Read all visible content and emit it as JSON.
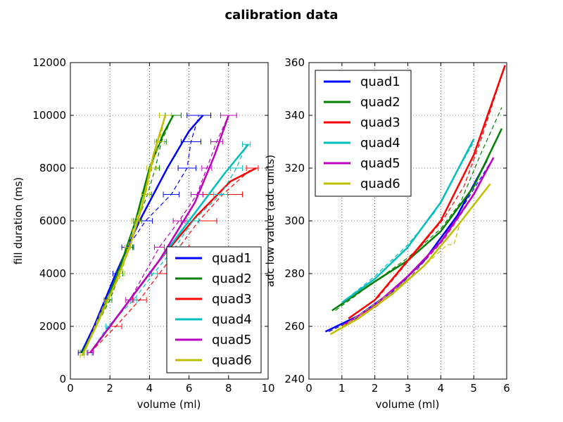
{
  "figure": {
    "title": "calibration data"
  },
  "colors": {
    "quad1": "#0000ff",
    "quad2": "#008000",
    "quad3": "#ff0000",
    "quad4": "#00bfbf",
    "quad5": "#bf00bf",
    "quad6": "#bfbf00"
  },
  "chart_data": [
    {
      "type": "line",
      "xlabel": "volume (ml)",
      "ylabel": "fill duration (ms)",
      "xlim": [
        0,
        10
      ],
      "ylim": [
        0,
        12000
      ],
      "xticks": [
        "0",
        "2",
        "4",
        "6",
        "8",
        "10"
      ],
      "yticks": [
        "0",
        "2000",
        "4000",
        "6000",
        "8000",
        "10000",
        "12000"
      ],
      "grid": true,
      "legend": {
        "position": "lower-right",
        "entries": [
          "quad1",
          "quad2",
          "quad3",
          "quad4",
          "quad5",
          "quad6"
        ]
      },
      "series": [
        {
          "name": "quad1",
          "color": "#0000ff",
          "fit": [
            [
              0.55,
              1000
            ],
            [
              1.2,
              2000
            ],
            [
              2.3,
              4000
            ],
            [
              3.5,
              6000
            ],
            [
              4.9,
              8000
            ],
            [
              6.0,
              9400
            ],
            [
              6.7,
              10000
            ]
          ],
          "measured": [
            [
              0.55,
              1000
            ],
            [
              1.9,
              3000
            ],
            [
              2.4,
              4000
            ],
            [
              2.9,
              5000
            ],
            [
              3.8,
              6000
            ],
            [
              5.1,
              7000
            ],
            [
              5.9,
              8000
            ],
            [
              6.1,
              9000
            ],
            [
              6.5,
              10000
            ]
          ],
          "xerr": [
            0.15,
            0.2,
            0.25,
            0.3,
            0.35,
            0.4,
            0.45,
            0.5,
            0.6
          ]
        },
        {
          "name": "quad2",
          "color": "#008000",
          "fit": [
            [
              0.6,
              1000
            ],
            [
              1.3,
              2000
            ],
            [
              2.4,
              4000
            ],
            [
              3.3,
              6000
            ],
            [
              4.0,
              8000
            ],
            [
              4.7,
              9300
            ],
            [
              5.2,
              10000
            ]
          ],
          "measured": [
            [
              0.6,
              1000
            ],
            [
              2.0,
              3000
            ],
            [
              2.5,
              4000
            ],
            [
              3.0,
              5000
            ],
            [
              3.4,
              6000
            ],
            [
              3.9,
              7000
            ],
            [
              4.3,
              8000
            ],
            [
              4.6,
              9000
            ],
            [
              5.2,
              10000
            ]
          ],
          "xerr": [
            0.1,
            0.1,
            0.15,
            0.15,
            0.2,
            0.2,
            0.2,
            0.25,
            0.4
          ]
        },
        {
          "name": "quad3",
          "color": "#ff0000",
          "fit": [
            [
              1.0,
              1000
            ],
            [
              2.5,
              2500
            ],
            [
              4.5,
              4500
            ],
            [
              6.4,
              6200
            ],
            [
              8.1,
              7500
            ],
            [
              9.4,
              8000
            ]
          ],
          "measured": [
            [
              1.0,
              1000
            ],
            [
              2.3,
              2000
            ],
            [
              3.5,
              3000
            ],
            [
              4.5,
              4000
            ],
            [
              5.5,
              5000
            ],
            [
              6.5,
              6000
            ],
            [
              7.7,
              7000
            ],
            [
              9.2,
              8000
            ]
          ],
          "xerr": [
            0.15,
            0.3,
            0.35,
            0.4,
            0.5,
            0.9,
            1.0,
            0.3
          ]
        },
        {
          "name": "quad4",
          "color": "#00bfbf",
          "fit": [
            [
              1.0,
              1000
            ],
            [
              2.0,
              2000
            ],
            [
              4.0,
              4000
            ],
            [
              6.0,
              6000
            ],
            [
              7.8,
              7800
            ],
            [
              9.0,
              8900
            ]
          ],
          "measured": [
            [
              1.0,
              1000
            ],
            [
              1.9,
              2000
            ],
            [
              3.2,
              3000
            ],
            [
              4.2,
              4000
            ],
            [
              5.3,
              5000
            ],
            [
              6.2,
              6000
            ],
            [
              7.6,
              7000
            ],
            [
              8.4,
              8000
            ],
            [
              8.9,
              8900
            ]
          ],
          "xerr": [
            0.1,
            0.1,
            0.15,
            0.2,
            0.25,
            0.3,
            0.35,
            0.3,
            0.2
          ]
        },
        {
          "name": "quad5",
          "color": "#bf00bf",
          "fit": [
            [
              1.0,
              1000
            ],
            [
              2.5,
              2500
            ],
            [
              4.5,
              4500
            ],
            [
              6.3,
              6700
            ],
            [
              7.3,
              8500
            ],
            [
              8.0,
              10000
            ]
          ],
          "measured": [
            [
              1.0,
              1000
            ],
            [
              3.0,
              3000
            ],
            [
              4.5,
              5000
            ],
            [
              5.5,
              6000
            ],
            [
              6.4,
              7000
            ],
            [
              6.9,
              8000
            ],
            [
              7.4,
              9000
            ],
            [
              8.0,
              10000
            ]
          ],
          "xerr": [
            0.15,
            0.2,
            0.25,
            0.3,
            0.3,
            0.25,
            0.3,
            0.4
          ]
        },
        {
          "name": "quad6",
          "color": "#bfbf00",
          "fit": [
            [
              0.6,
              900
            ],
            [
              1.3,
              2000
            ],
            [
              2.2,
              3500
            ],
            [
              3.0,
              5000
            ],
            [
              3.6,
              6500
            ],
            [
              4.2,
              8500
            ],
            [
              4.8,
              10000
            ]
          ],
          "measured": [
            [
              0.6,
              900
            ],
            [
              1.8,
              3000
            ],
            [
              2.6,
              4000
            ],
            [
              2.9,
              5000
            ],
            [
              3.3,
              6000
            ],
            [
              3.8,
              7000
            ],
            [
              4.1,
              8000
            ],
            [
              4.5,
              9000
            ],
            [
              4.8,
              10000
            ]
          ],
          "xerr": [
            0.1,
            0.1,
            0.15,
            0.15,
            0.2,
            0.2,
            0.25,
            0.25,
            0.3
          ]
        }
      ]
    },
    {
      "type": "line",
      "xlabel": "volume (ml)",
      "ylabel": "adc low value (adc units)",
      "xlim": [
        0,
        6
      ],
      "ylim": [
        240,
        360
      ],
      "xticks": [
        "0",
        "1",
        "2",
        "3",
        "4",
        "5",
        "6"
      ],
      "yticks": [
        "240",
        "260",
        "280",
        "300",
        "320",
        "340",
        "360"
      ],
      "grid": true,
      "legend": {
        "position": "upper-left",
        "entries": [
          "quad1",
          "quad2",
          "quad3",
          "quad4",
          "quad5",
          "quad6"
        ]
      },
      "series": [
        {
          "name": "quad1",
          "color": "#0000ff",
          "fit": [
            [
              0.5,
              258
            ],
            [
              1.5,
              264
            ],
            [
              2.5,
              273
            ],
            [
              3.5,
              285
            ],
            [
              4.5,
              302
            ],
            [
              5.4,
              323
            ]
          ],
          "measured": [
            [
              0.6,
              258
            ],
            [
              1.6,
              264
            ],
            [
              2.6,
              273
            ],
            [
              3.6,
              287
            ],
            [
              4.3,
              298
            ],
            [
              4.8,
              308
            ],
            [
              5.5,
              322
            ]
          ]
        },
        {
          "name": "quad2",
          "color": "#008000",
          "fit": [
            [
              0.7,
              266
            ],
            [
              2.0,
              277
            ],
            [
              3.0,
              285
            ],
            [
              4.0,
              296
            ],
            [
              5.0,
              313
            ],
            [
              5.85,
              335
            ]
          ],
          "measured": [
            [
              0.8,
              266
            ],
            [
              2.0,
              277
            ],
            [
              3.0,
              286
            ],
            [
              4.0,
              297
            ],
            [
              4.6,
              307
            ],
            [
              5.2,
              325
            ],
            [
              5.85,
              343
            ]
          ]
        },
        {
          "name": "quad3",
          "color": "#ff0000",
          "fit": [
            [
              1.2,
              263
            ],
            [
              2.0,
              270
            ],
            [
              3.0,
              285
            ],
            [
              4.0,
              300
            ],
            [
              5.0,
              325
            ],
            [
              5.95,
              359
            ]
          ],
          "measured": [
            [
              1.2,
              263
            ],
            [
              2.1,
              271
            ],
            [
              3.1,
              286
            ],
            [
              4.1,
              301
            ],
            [
              4.7,
              313
            ],
            [
              5.2,
              330
            ],
            [
              5.9,
              357
            ]
          ]
        },
        {
          "name": "quad4",
          "color": "#00bfbf",
          "fit": [
            [
              1.0,
              269
            ],
            [
              2.0,
              278
            ],
            [
              3.0,
              290
            ],
            [
              4.0,
              307
            ],
            [
              5.0,
              331
            ]
          ],
          "measured": [
            [
              1.0,
              269
            ],
            [
              2.0,
              279
            ],
            [
              3.0,
              291
            ],
            [
              3.8,
              303
            ],
            [
              4.6,
              321
            ],
            [
              5.0,
              330
            ]
          ]
        },
        {
          "name": "quad5",
          "color": "#bf00bf",
          "fit": [
            [
              1.0,
              260
            ],
            [
              2.0,
              268
            ],
            [
              3.0,
              279
            ],
            [
              4.0,
              292
            ],
            [
              5.0,
              310
            ],
            [
              5.6,
              324
            ]
          ],
          "measured": [
            [
              1.1,
              260
            ],
            [
              2.1,
              268
            ],
            [
              3.1,
              279
            ],
            [
              4.1,
              293
            ],
            [
              4.8,
              306
            ],
            [
              5.5,
              322
            ]
          ]
        },
        {
          "name": "quad6",
          "color": "#bfbf00",
          "fit": [
            [
              0.65,
              257
            ],
            [
              1.5,
              263
            ],
            [
              2.5,
              272
            ],
            [
              3.5,
              283
            ],
            [
              4.5,
              298
            ],
            [
              5.5,
              314
            ]
          ],
          "measured": [
            [
              0.65,
              257
            ],
            [
              1.5,
              264
            ],
            [
              2.5,
              273
            ],
            [
              3.5,
              283
            ],
            [
              4.2,
              291
            ],
            [
              4.4,
              291
            ],
            [
              4.6,
              300
            ]
          ]
        }
      ]
    }
  ]
}
